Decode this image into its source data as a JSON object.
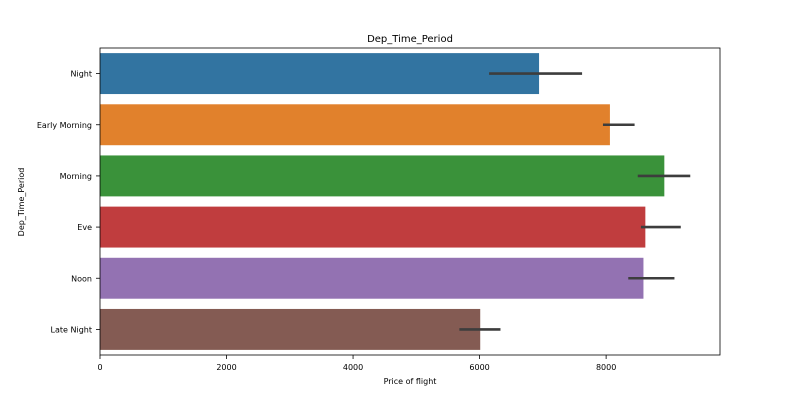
{
  "chart_data": {
    "type": "bar",
    "orientation": "horizontal",
    "title": "Dep_Time_Period",
    "xlabel": "Price of flight",
    "ylabel": "Dep_Time_Period",
    "categories": [
      "Night",
      "Early Morning",
      "Morning",
      "Eve",
      "Noon",
      "Late Night"
    ],
    "values": [
      6940,
      8060,
      8920,
      8620,
      8590,
      6010
    ],
    "error_low": [
      6150,
      7950,
      8500,
      8550,
      8350,
      5680
    ],
    "error_high": [
      7620,
      8450,
      9330,
      9180,
      9080,
      6330
    ],
    "colors": [
      "#3274a1",
      "#e1812c",
      "#3a923a",
      "#c03d3e",
      "#9372b2",
      "#845b53"
    ],
    "xlim": [
      0,
      9800
    ],
    "xticks": [
      0,
      2000,
      4000,
      6000,
      8000
    ],
    "grid": false,
    "legend": "none"
  }
}
